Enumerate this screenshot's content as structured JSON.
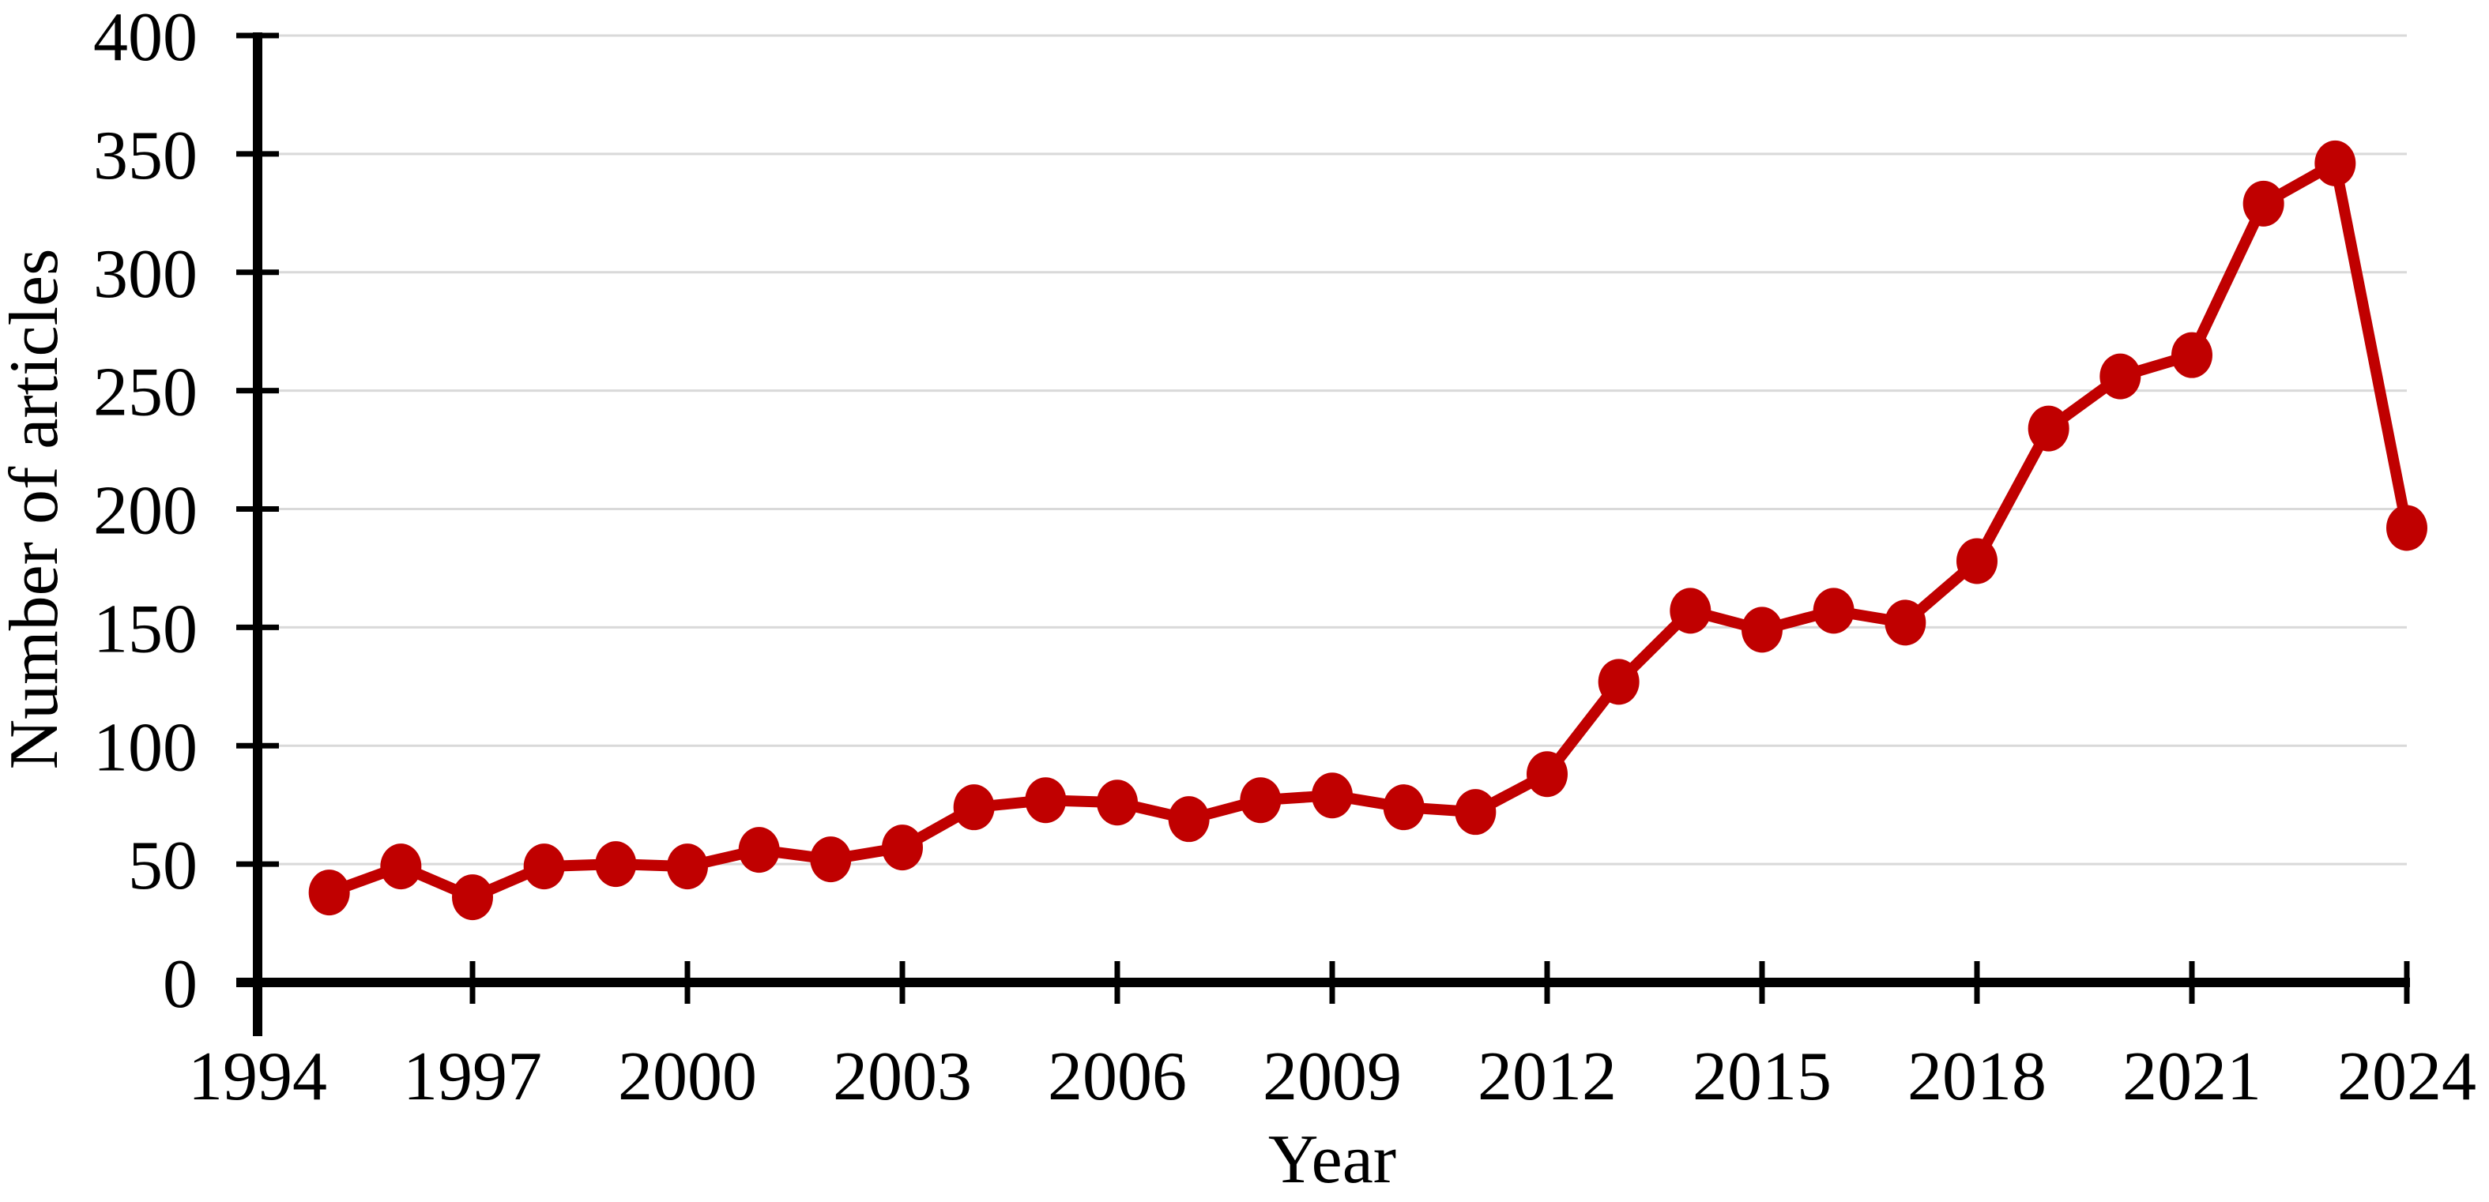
{
  "figure": {
    "xlabel": "Year",
    "ylabel": "Number of articles"
  },
  "chart_data": {
    "type": "line",
    "title": "",
    "xlabel": "Year",
    "ylabel": "Number of articles",
    "x": [
      1995,
      1996,
      1997,
      1998,
      1999,
      2000,
      2001,
      2002,
      2003,
      2004,
      2005,
      2006,
      2007,
      2008,
      2009,
      2010,
      2011,
      2012,
      2013,
      2014,
      2015,
      2016,
      2017,
      2018,
      2019,
      2020,
      2021,
      2022,
      2023,
      2024
    ],
    "values": [
      38,
      49,
      36,
      49,
      50,
      49,
      56,
      52,
      57,
      74,
      77,
      76,
      69,
      77,
      79,
      74,
      72,
      88,
      127,
      157,
      149,
      157,
      152,
      178,
      234,
      256,
      265,
      329,
      346,
      192
    ],
    "series": [
      {
        "name": "Number of articles",
        "values": [
          38,
          49,
          36,
          49,
          50,
          49,
          56,
          52,
          57,
          74,
          77,
          76,
          69,
          77,
          79,
          74,
          72,
          88,
          127,
          157,
          149,
          157,
          152,
          178,
          234,
          256,
          265,
          329,
          346,
          192
        ]
      }
    ],
    "xlim": [
      1994,
      2024
    ],
    "ylim": [
      0,
      400
    ],
    "xticks": [
      1994,
      1997,
      2000,
      2003,
      2006,
      2009,
      2012,
      2015,
      2018,
      2021,
      2024
    ],
    "yticks": [
      0,
      50,
      100,
      150,
      200,
      250,
      300,
      350,
      400
    ],
    "grid": "horizontal",
    "legend": "none",
    "marker": "circle",
    "colors": {
      "line": "#C00000",
      "marker": "#C00000",
      "grid": "#D9D9D9",
      "axis": "#000000",
      "text": "#000000",
      "background": "#FFFFFF"
    }
  }
}
